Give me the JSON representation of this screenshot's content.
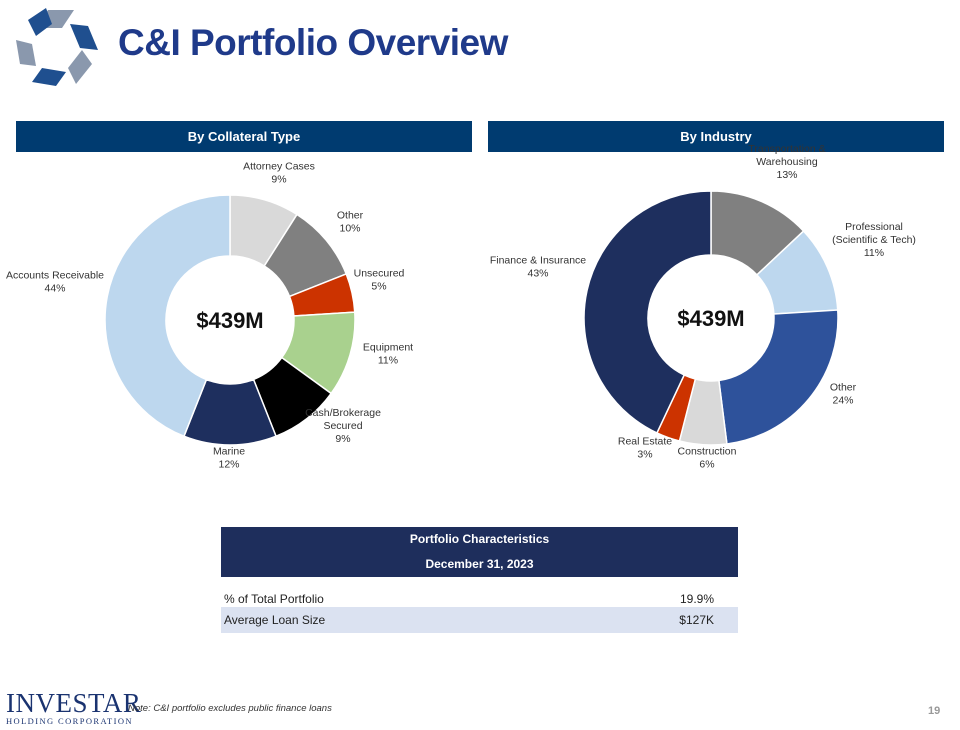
{
  "title": "C&I Portfolio Overview",
  "logo": {
    "icon": "star-logo-icon",
    "brand": "INVESTAR",
    "brand_sub": "HOLDING CORPORATION"
  },
  "chart_data": [
    {
      "type": "pie",
      "title": "By Collateral Type",
      "center_label": "$439M",
      "slices": [
        {
          "lines": [
            "Attorney Cases"
          ],
          "pct": "9%",
          "value": 9,
          "color": "#d9d9d9"
        },
        {
          "lines": [
            "Other"
          ],
          "pct": "10%",
          "value": 10,
          "color": "#808080"
        },
        {
          "lines": [
            "Unsecured"
          ],
          "pct": "5%",
          "value": 5,
          "color": "#cc3300"
        },
        {
          "lines": [
            "Equipment"
          ],
          "pct": "11%",
          "value": 11,
          "color": "#a9d18e"
        },
        {
          "lines": [
            "Cash/Brokerage",
            "Secured"
          ],
          "pct": "9%",
          "value": 9,
          "color": "#000000"
        },
        {
          "lines": [
            "Marine"
          ],
          "pct": "12%",
          "value": 12,
          "color": "#1e2f5e"
        },
        {
          "lines": [
            "Accounts Receivable"
          ],
          "pct": "44%",
          "value": 44,
          "color": "#bdd7ee"
        }
      ]
    },
    {
      "type": "pie",
      "title": "By Industry",
      "center_label": "$439M",
      "slices": [
        {
          "lines": [
            "Transportation  &",
            "Warehousing"
          ],
          "pct": "13%",
          "value": 13,
          "color": "#808080"
        },
        {
          "lines": [
            "Professional",
            "(Scientific  & Tech)"
          ],
          "pct": "11%",
          "value": 11,
          "color": "#bdd7ee"
        },
        {
          "lines": [
            "Other"
          ],
          "pct": "24%",
          "value": 24,
          "color": "#2e529b"
        },
        {
          "lines": [
            "Construction"
          ],
          "pct": "6%",
          "value": 6,
          "color": "#d9d9d9"
        },
        {
          "lines": [
            "Real Estate"
          ],
          "pct": "3%",
          "value": 3,
          "color": "#cc3300"
        },
        {
          "lines": [
            "Finance  & Insurance"
          ],
          "pct": "43%",
          "value": 43,
          "color": "#1e2f5e"
        }
      ]
    }
  ],
  "table": {
    "header_line1": "Portfolio Characteristics",
    "header_line2": "December 31, 2023",
    "rows": [
      {
        "label": "% of Total Portfolio",
        "value": "19.9%"
      },
      {
        "label": "Average Loan Size",
        "value": "$127K"
      }
    ]
  },
  "footer": {
    "note": "Note: C&I portfolio excludes public finance loans",
    "page": "19"
  }
}
